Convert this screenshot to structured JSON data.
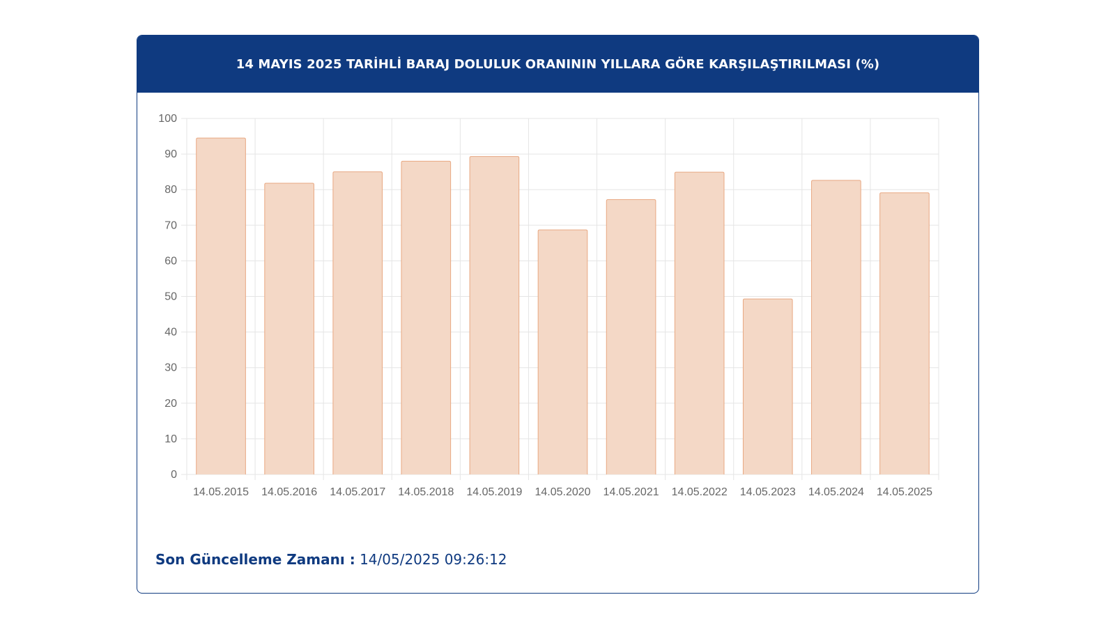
{
  "header": {
    "title": "14 MAYIS 2025 TARİHLİ BARAJ DOLULUK ORANININ YILLARA GÖRE KARŞILAŞTIRILMASI (%)"
  },
  "footer": {
    "label": "Son Güncelleme Zamanı :",
    "value": "14/05/2025 09:26:12"
  },
  "colors": {
    "header_bg": "#0f3a80",
    "bar_fill": "#f4d8c6",
    "bar_stroke": "#e8a882",
    "grid": "#e5e5e5",
    "tick_text": "#666666"
  },
  "chart_data": {
    "type": "bar",
    "categories": [
      "14.05.2015",
      "14.05.2016",
      "14.05.2017",
      "14.05.2018",
      "14.05.2019",
      "14.05.2020",
      "14.05.2021",
      "14.05.2022",
      "14.05.2023",
      "14.05.2024",
      "14.05.2025"
    ],
    "values": [
      94.5,
      81.8,
      85.0,
      88.0,
      89.3,
      68.7,
      77.2,
      84.9,
      49.3,
      82.6,
      79.1
    ],
    "yticks": [
      "0",
      "10",
      "20",
      "30",
      "40",
      "50",
      "60",
      "70",
      "80",
      "90",
      "100"
    ],
    "ylim": [
      0,
      100
    ],
    "grid": true,
    "legend": "none",
    "title": "",
    "xlabel": "",
    "ylabel": ""
  }
}
